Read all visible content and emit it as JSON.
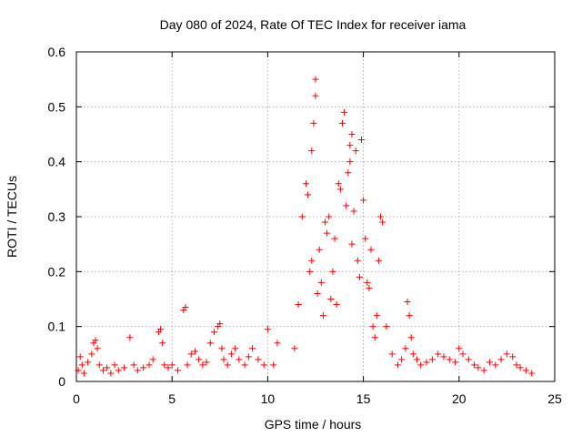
{
  "chart_data": {
    "type": "scatter",
    "title": "Day 080 of 2024, Rate Of TEC Index for receiver iama",
    "xlabel": "GPS time / hours",
    "ylabel": "ROTI / TECUs",
    "xlim": [
      0,
      25
    ],
    "ylim": [
      0,
      0.6
    ],
    "xticks": [
      "0",
      "5",
      "10",
      "15",
      "20",
      "25"
    ],
    "yticks": [
      "0",
      "0.1",
      "0.2",
      "0.3",
      "0.4",
      "0.5",
      "0.6"
    ],
    "grid": true,
    "marker": "plus",
    "color": "#ff0000",
    "series": [
      {
        "x": [
          0.1,
          0.2,
          0.3,
          0.4,
          0.6,
          0.8,
          0.9,
          1.0,
          1.1,
          1.2,
          1.4,
          1.6,
          1.8,
          2.0,
          2.2,
          2.5,
          2.8,
          3.0,
          3.2,
          3.5,
          3.8,
          4.0,
          4.3,
          4.4,
          4.5,
          4.6,
          4.8,
          5.0,
          5.3,
          5.6,
          5.7,
          5.8,
          6.0,
          6.2,
          6.4,
          6.6,
          6.8,
          7.0,
          7.2,
          7.4,
          7.5,
          7.6,
          7.7,
          7.9,
          8.1,
          8.3,
          8.5,
          8.8,
          9.0,
          9.2,
          9.5,
          9.8,
          10.0,
          10.3,
          10.5,
          11.4,
          11.6,
          11.8,
          12.0,
          12.1,
          12.2,
          12.3,
          12.3,
          12.4,
          12.5,
          12.5,
          12.6,
          12.7,
          12.8,
          12.9,
          13.0,
          13.1,
          13.2,
          13.3,
          13.4,
          13.5,
          13.6,
          13.7,
          13.8,
          13.9,
          14.0,
          14.1,
          14.2,
          14.3,
          14.3,
          14.4,
          14.4,
          14.5,
          14.6,
          14.7,
          14.8,
          14.9,
          15.0,
          15.1,
          15.2,
          15.3,
          15.4,
          15.5,
          15.6,
          15.7,
          15.8,
          15.9,
          16.0,
          16.2,
          16.5,
          16.8,
          17.0,
          17.2,
          17.3,
          17.4,
          17.5,
          17.6,
          17.8,
          18.0,
          18.3,
          18.6,
          18.9,
          19.2,
          19.5,
          19.8,
          20.0,
          20.2,
          20.5,
          20.8,
          21.0,
          21.3,
          21.6,
          21.9,
          22.2,
          22.5,
          22.8,
          23.0,
          23.2,
          23.5,
          23.8
        ],
        "y": [
          0.02,
          0.045,
          0.03,
          0.015,
          0.035,
          0.05,
          0.07,
          0.075,
          0.06,
          0.03,
          0.02,
          0.025,
          0.015,
          0.03,
          0.02,
          0.025,
          0.08,
          0.03,
          0.02,
          0.025,
          0.03,
          0.04,
          0.09,
          0.095,
          0.07,
          0.03,
          0.025,
          0.03,
          0.02,
          0.13,
          0.135,
          0.03,
          0.05,
          0.055,
          0.04,
          0.03,
          0.035,
          0.07,
          0.09,
          0.1,
          0.105,
          0.06,
          0.04,
          0.03,
          0.05,
          0.06,
          0.04,
          0.03,
          0.045,
          0.06,
          0.04,
          0.03,
          0.095,
          0.03,
          0.07,
          0.06,
          0.14,
          0.3,
          0.36,
          0.34,
          0.2,
          0.22,
          0.42,
          0.47,
          0.55,
          0.52,
          0.16,
          0.24,
          0.18,
          0.12,
          0.29,
          0.27,
          0.3,
          0.15,
          0.2,
          0.26,
          0.14,
          0.36,
          0.35,
          0.47,
          0.49,
          0.32,
          0.38,
          0.4,
          0.43,
          0.25,
          0.45,
          0.31,
          0.42,
          0.22,
          0.19,
          0.44,
          0.33,
          0.26,
          0.18,
          0.17,
          0.24,
          0.1,
          0.08,
          0.12,
          0.22,
          0.3,
          0.29,
          0.1,
          0.05,
          0.03,
          0.04,
          0.06,
          0.145,
          0.12,
          0.08,
          0.05,
          0.04,
          0.03,
          0.035,
          0.04,
          0.05,
          0.045,
          0.04,
          0.035,
          0.06,
          0.05,
          0.04,
          0.03,
          0.025,
          0.02,
          0.035,
          0.03,
          0.04,
          0.05,
          0.045,
          0.03,
          0.025,
          0.02,
          0.015
        ]
      }
    ]
  }
}
